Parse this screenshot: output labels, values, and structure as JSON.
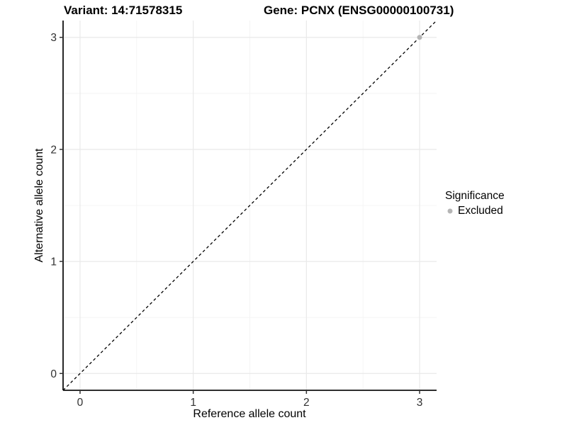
{
  "chart_data": {
    "type": "scatter",
    "title_left": "Variant: 14:71578315",
    "title_right": "Gene: PCNX (ENSG00000100731)",
    "xlabel": "Reference allele count",
    "ylabel": "Alternative allele count",
    "xlim": [
      -0.15,
      3.15
    ],
    "ylim": [
      -0.15,
      3.15
    ],
    "xticks": [
      0,
      1,
      2,
      3
    ],
    "yticks": [
      0,
      1,
      2,
      3
    ],
    "grid": true,
    "points": [
      {
        "x": 3,
        "y": 3,
        "significance": "Excluded",
        "color": "#b5b5b5"
      }
    ],
    "reference_line": {
      "type": "identity",
      "style": "dashed",
      "color": "#000000"
    },
    "legend": {
      "title": "Significance",
      "position": "right",
      "items": [
        {
          "label": "Excluded",
          "color": "#b5b5b5"
        }
      ]
    }
  },
  "colors": {
    "grid_major": "#e9e9e9",
    "grid_minor": "#f4f4f4",
    "axis_line": "#111111",
    "tick_mark": "#333333",
    "tick_text": "#303030"
  }
}
